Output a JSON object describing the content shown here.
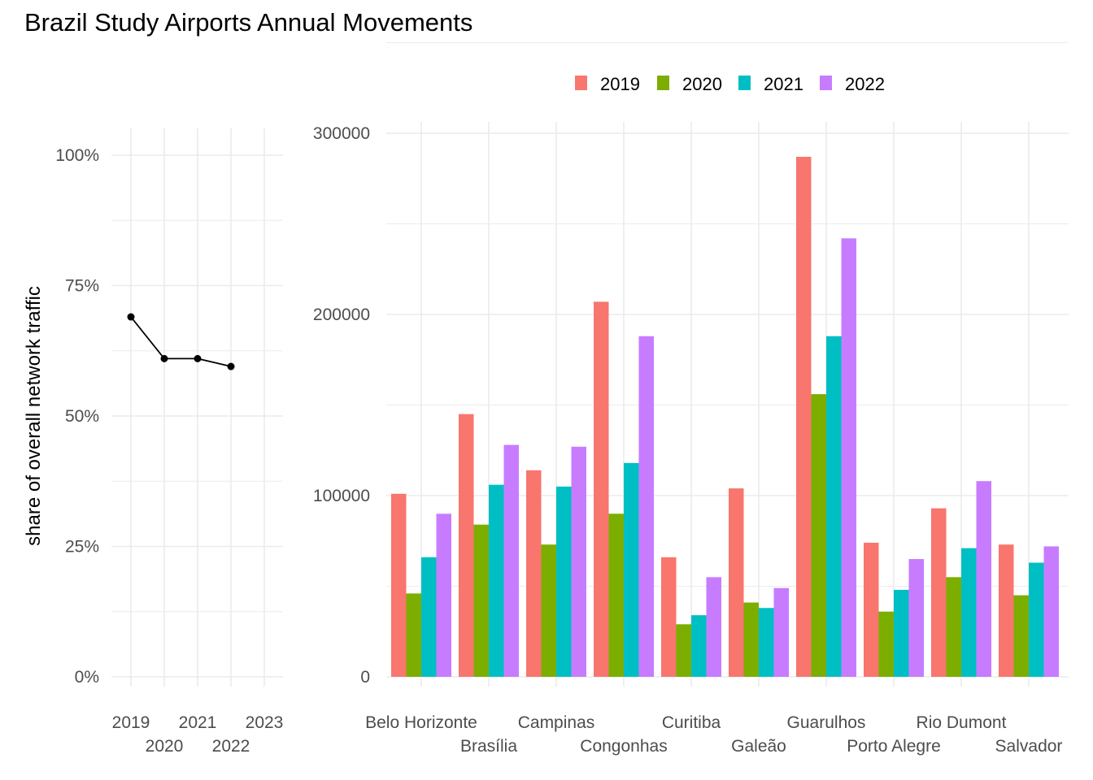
{
  "title": "Brazil Study Airports Annual Movements",
  "chart_data": [
    {
      "type": "line",
      "ylabel": "share of overall network traffic",
      "x": [
        2019,
        2020,
        2021,
        2022
      ],
      "values": [
        0.69,
        0.61,
        0.61,
        0.595
      ],
      "x_ticks": [
        2019,
        2020,
        2021,
        2022,
        2023
      ],
      "x_tick_labels": [
        "2019",
        "2020",
        "2021",
        "2022",
        "2023"
      ],
      "y_ticks": [
        0,
        0.25,
        0.5,
        0.75,
        1.0
      ],
      "y_tick_labels": [
        "0%",
        "25%",
        "50%",
        "75%",
        "100%"
      ],
      "xlim": [
        2019,
        2023
      ],
      "ylim": [
        0,
        1.0
      ],
      "grid": true,
      "color": "#000000"
    },
    {
      "type": "bar",
      "categories": [
        "Belo Horizonte",
        "Brasília",
        "Campinas",
        "Congonhas",
        "Curitiba",
        "Galeão",
        "Guarulhos",
        "Porto Alegre",
        "Rio Dumont",
        "Salvador"
      ],
      "series": [
        {
          "name": "2019",
          "color": "#F8766D",
          "values": [
            101000,
            145000,
            114000,
            207000,
            66000,
            104000,
            287000,
            74000,
            93000,
            73000
          ]
        },
        {
          "name": "2020",
          "color": "#7CAE00",
          "values": [
            46000,
            84000,
            73000,
            90000,
            29000,
            41000,
            156000,
            36000,
            55000,
            45000
          ]
        },
        {
          "name": "2021",
          "color": "#00BFC4",
          "values": [
            66000,
            106000,
            105000,
            118000,
            34000,
            38000,
            188000,
            48000,
            71000,
            63000
          ]
        },
        {
          "name": "2022",
          "color": "#C77CFF",
          "values": [
            90000,
            128000,
            127000,
            188000,
            55000,
            49000,
            242000,
            65000,
            108000,
            72000
          ]
        }
      ],
      "y_ticks": [
        0,
        100000,
        200000,
        300000
      ],
      "y_tick_labels": [
        "0",
        "100000",
        "200000",
        "300000"
      ],
      "ylim": [
        0,
        300000
      ],
      "grid": true,
      "legend_position": "top"
    }
  ]
}
